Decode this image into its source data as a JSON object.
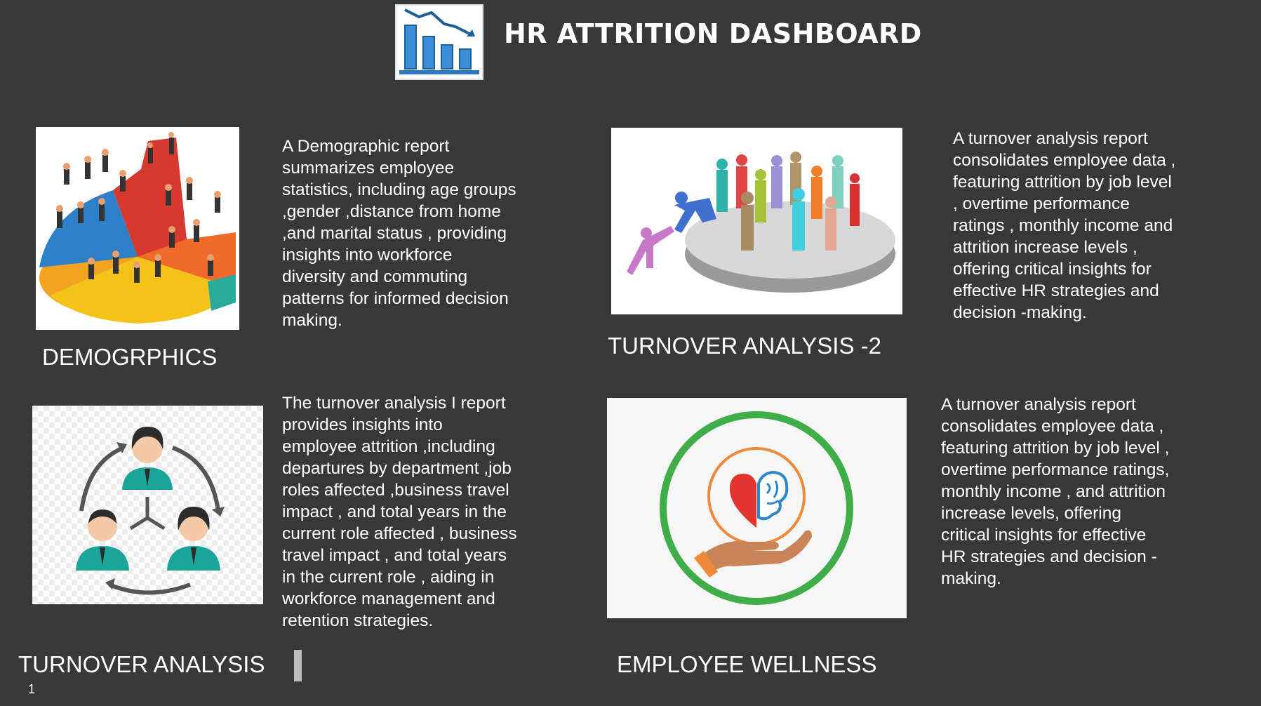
{
  "header": {
    "title": "HR ATTRITION DASHBOARD",
    "logo_icon": "bar-chart-decline-icon"
  },
  "cards": {
    "demographics": {
      "label": "DEMOGRPHICS",
      "image_icon": "population-pie-chart-illustration",
      "description": "A Demographic report\nsummarizes employee\nstatistics, including age groups\n,gender ,distance from home\n,and marital status , providing\ninsights into workforce\ndiversity and commuting\npatterns for informed decision\nmaking."
    },
    "turnover2": {
      "label": "TURNOVER ANALYSIS -2",
      "image_icon": "people-on-platform-illustration",
      "description": "A turnover analysis report\nconsolidates employee data ,\nfeaturing  attrition by job level\n, overtime performance\nratings , monthly income and\nattrition increase levels ,\noffering critical insights for\neffective HR strategies and\ndecision -making."
    },
    "turnover": {
      "label": "TURNOVER ANALYSIS",
      "image_icon": "employee-cycle-illustration",
      "description": "The turnover analysis I report\nprovides insights into\nemployee attrition ,including\ndepartures by department ,job\nroles affected ,business travel\nimpact , and total years in the\ncurrent role affected , business\ntravel impact , and total years\nin the current role , aiding in\nworkforce management  and\nretention strategies."
    },
    "wellness": {
      "label": "EMPLOYEE WELLNESS",
      "image_icon": "heart-brain-hand-icon",
      "description": " A turnover analysis report\nconsolidates employee data ,\nfeaturing attrition by job level ,\novertime performance ratings,\nmonthly income , and attrition\nincrease levels, offering\ncritical insights for effective\nHR strategies and decision -\nmaking."
    }
  },
  "footer": {
    "corner_mark": "1"
  },
  "colors": {
    "background": "#383838",
    "text": "#ffffff",
    "logo_blue": "#3a8fd8",
    "wellness_green": "#3fae49",
    "wellness_orange": "#ef8a3c",
    "heart_red": "#e3342f"
  }
}
